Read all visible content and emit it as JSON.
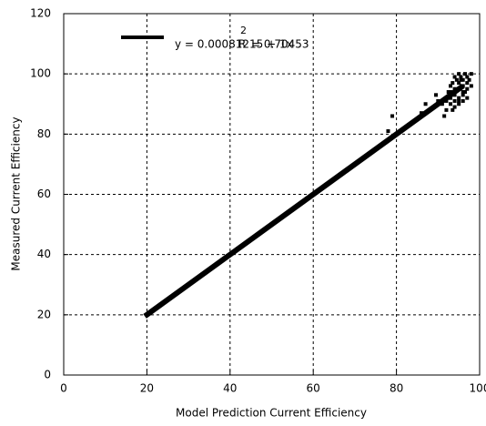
{
  "chart_data": {
    "type": "scatter",
    "xlabel": "Model Prediction Current Efficiency",
    "ylabel": "Measured Current Efficiency",
    "xlim": [
      0,
      100
    ],
    "ylim": [
      0,
      120
    ],
    "xticks": [
      0,
      20,
      40,
      60,
      80,
      100
    ],
    "yticks": [
      0,
      20,
      40,
      60,
      80,
      100,
      120
    ],
    "grid": true,
    "annotation": "R",
    "annotation_superscript": "2",
    "annotation_value": "= 0.70453",
    "series": [
      {
        "name": "y = 0.00081215 + 1x",
        "type": "line",
        "color": "#000000",
        "x": [
          19.5,
          96
        ],
        "values": [
          19.5,
          96
        ]
      },
      {
        "type": "scatter",
        "color": "#000000",
        "x": [
          92,
          93,
          94,
          95,
          96,
          97,
          93.5,
          94.5,
          95.5,
          96.5,
          92.5,
          91,
          90,
          89,
          88,
          87,
          86,
          94,
          95,
          96,
          97,
          98,
          93,
          94,
          95,
          96,
          97,
          92,
          93,
          94,
          95,
          96,
          91.5,
          92.5,
          93.5,
          95,
          96,
          97,
          98,
          79,
          78,
          89.5,
          94,
          95.5,
          96.5,
          97.5,
          93,
          95
        ],
        "values": [
          91,
          92,
          93,
          95,
          96,
          97,
          97,
          98,
          99,
          94,
          94,
          90,
          91,
          89,
          88,
          90,
          87,
          89,
          91,
          93,
          99,
          100,
          96,
          95,
          92,
          98,
          95,
          88,
          90,
          91,
          100,
          91,
          86,
          92,
          88,
          97,
          94,
          92,
          96,
          86,
          81,
          93,
          99,
          98,
          100,
          98,
          94,
          90
        ]
      }
    ]
  }
}
